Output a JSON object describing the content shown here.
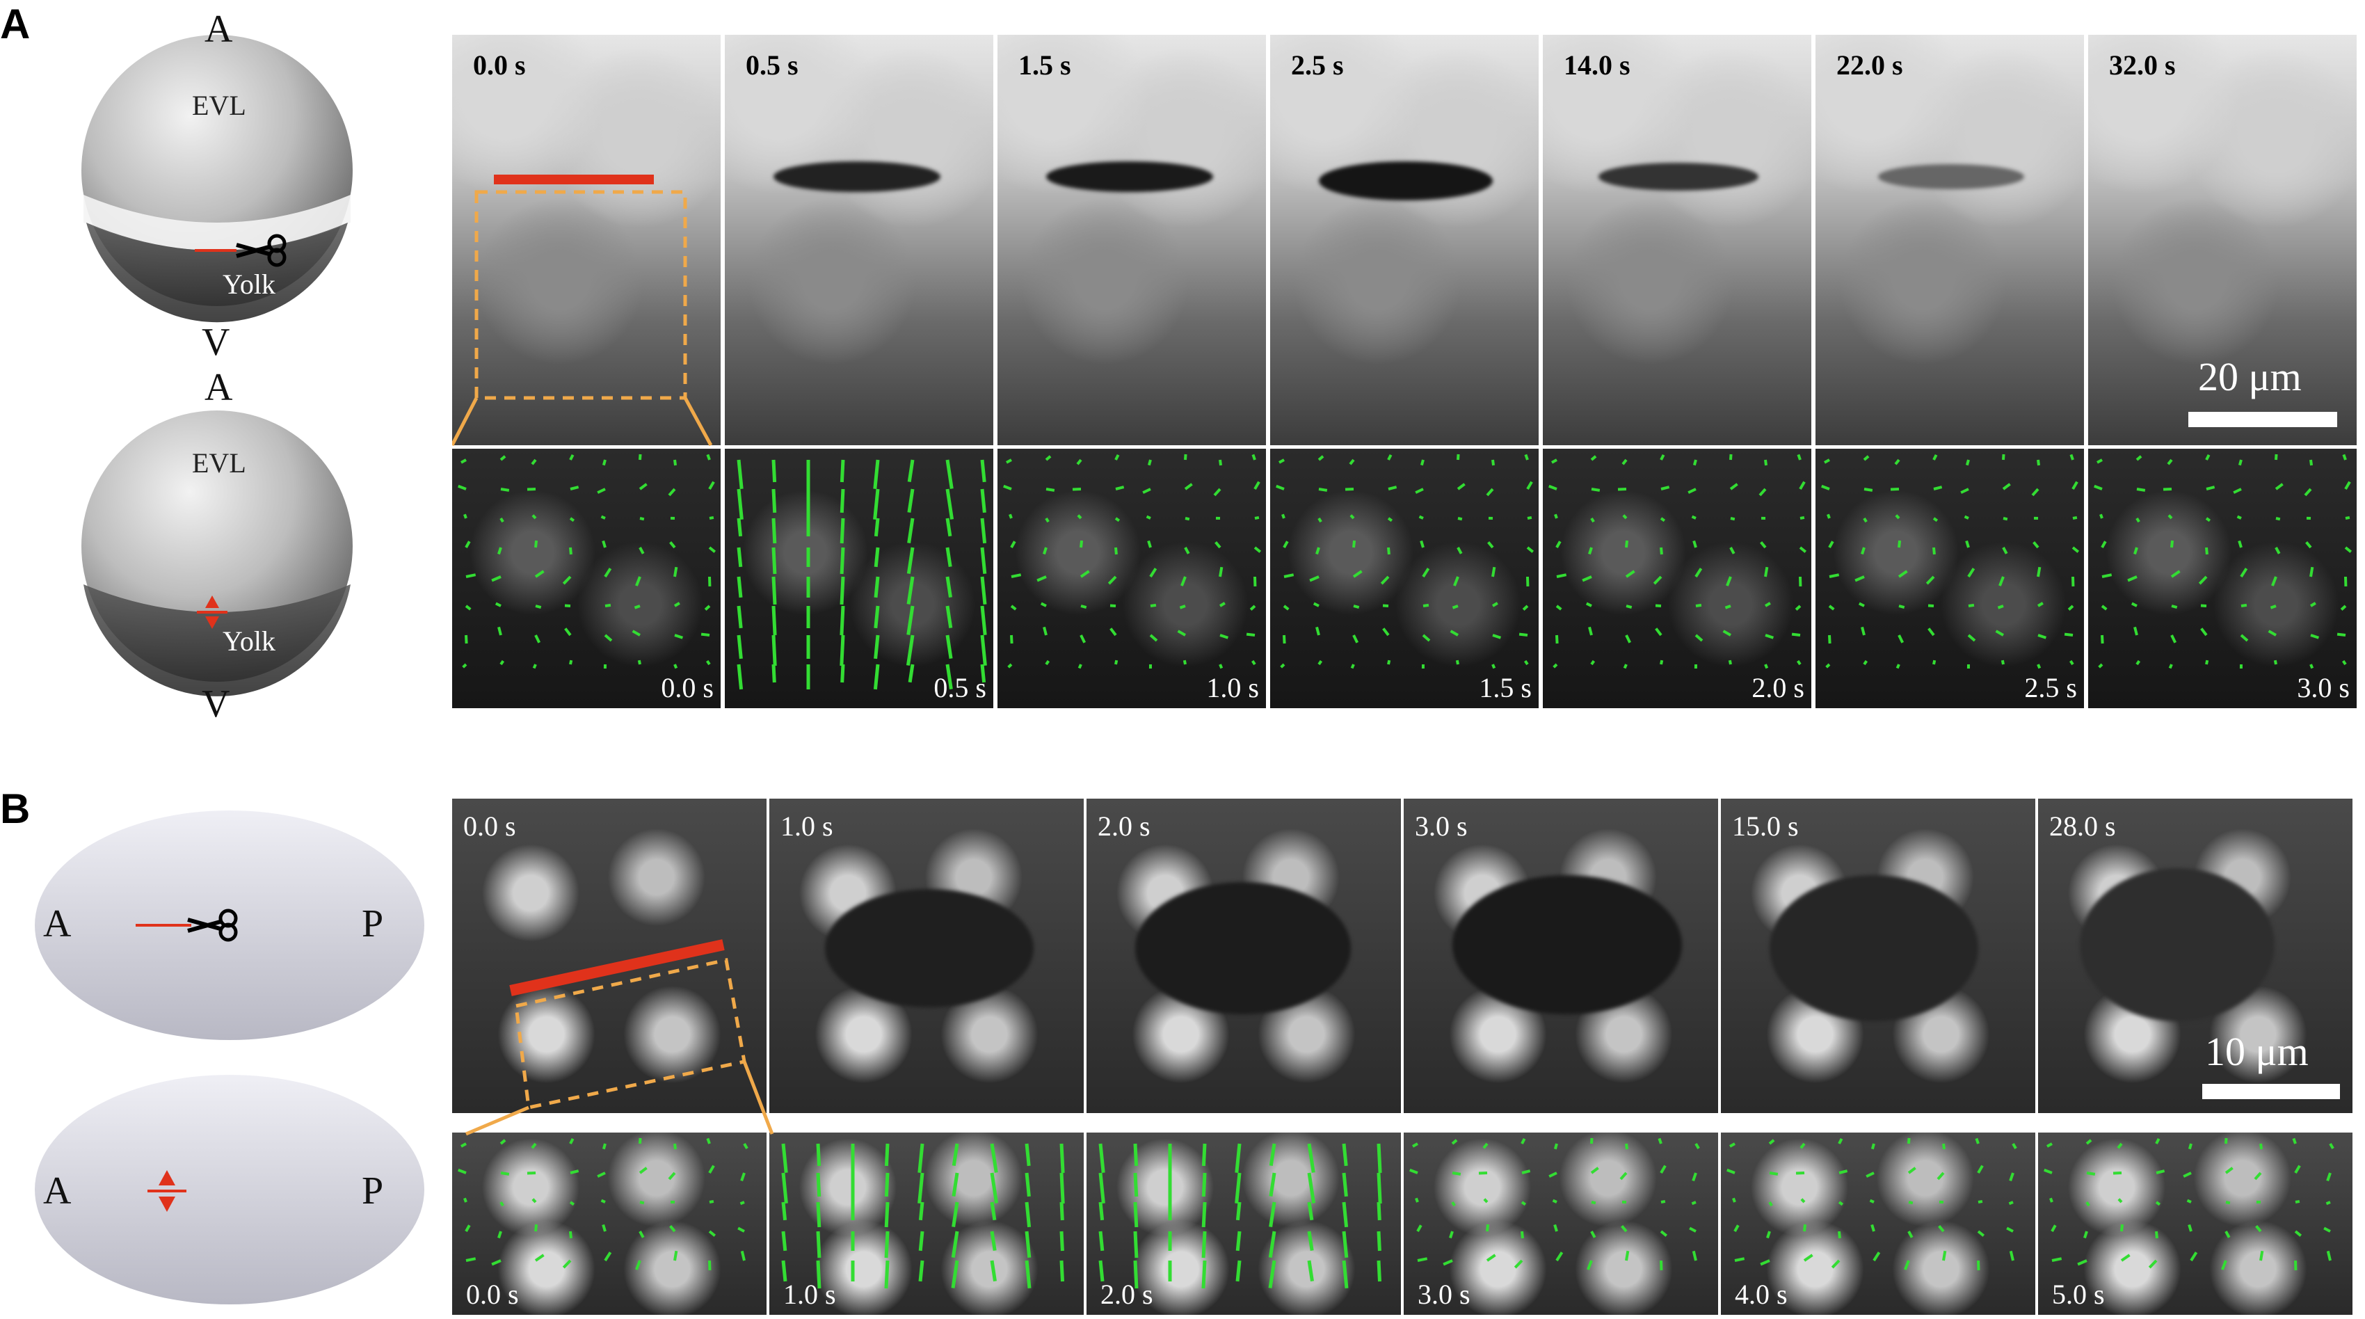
{
  "panels": [
    {
      "letter": "A",
      "embryo_top": {
        "anim": "A",
        "layer": "EVL",
        "yolk": "Yolk",
        "veg": "V"
      },
      "embryo_bottom": {
        "anim": "A",
        "layer": "EVL",
        "yolk": "Yolk",
        "veg": "V"
      },
      "top_times": [
        "0.0 s",
        "0.5 s",
        "1.5 s",
        "2.5 s",
        "14.0 s",
        "22.0 s",
        "32.0 s"
      ],
      "bottom_times": [
        "0.0 s",
        "0.5 s",
        "1.0 s",
        "1.5 s",
        "2.0 s",
        "2.5 s",
        "3.0 s"
      ],
      "scale": "20 μm"
    },
    {
      "letter": "B",
      "embryo_top": {
        "left": "A",
        "right": "P"
      },
      "embryo_bottom": {
        "left": "A",
        "right": "P"
      },
      "top_times": [
        "0.0 s",
        "1.0 s",
        "2.0 s",
        "3.0 s",
        "15.0 s",
        "28.0 s"
      ],
      "bottom_times": [
        "0.0 s",
        "1.0 s",
        "2.0 s",
        "3.0 s",
        "4.0 s",
        "5.0 s"
      ],
      "scale": "10 μm"
    }
  ],
  "colors": {
    "cut": "#e0321b",
    "box": "#f0a94a",
    "vectors": "#33dd33"
  }
}
